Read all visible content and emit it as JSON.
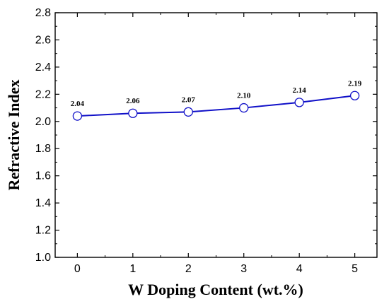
{
  "chart_data": {
    "type": "line",
    "title": "",
    "xlabel": "W Doping Content (wt.%)",
    "ylabel": "Refractive Index",
    "xlim": [
      -0.4,
      5.4
    ],
    "ylim": [
      1.0,
      2.8
    ],
    "x_ticks": [
      "0",
      "1",
      "2",
      "3",
      "4",
      "5"
    ],
    "y_ticks": [
      "1.0",
      "1.2",
      "1.4",
      "1.6",
      "1.8",
      "2.0",
      "2.2",
      "2.4",
      "2.6",
      "2.8"
    ],
    "grid": false,
    "legend": "none",
    "series": [
      {
        "color": "#1010c8",
        "marker": "open-circle",
        "x": [
          0,
          1,
          2,
          3,
          4,
          5
        ],
        "values": [
          2.04,
          2.06,
          2.07,
          2.1,
          2.14,
          2.19
        ],
        "labels": [
          "2.04",
          "2.06",
          "2.07",
          "2.10",
          "2.14",
          "2.19"
        ]
      }
    ]
  }
}
